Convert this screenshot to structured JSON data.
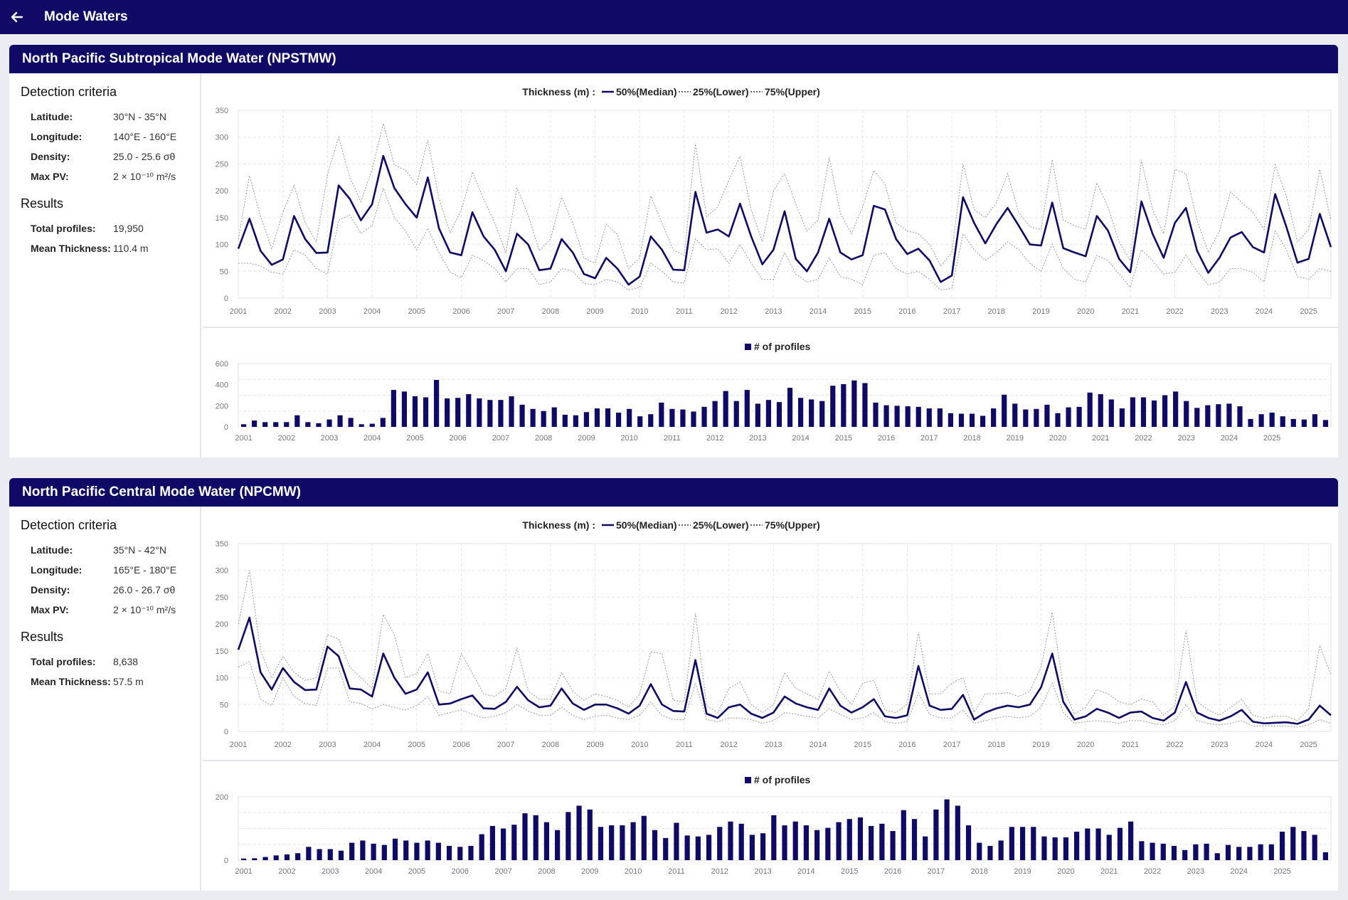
{
  "app": {
    "title": "Mode Waters"
  },
  "legend": {
    "thickness": "Thickness (m) :",
    "median": "50%(Median)",
    "lower": "25%(Lower)",
    "upper": "75%(Upper)",
    "profiles": "# of profiles"
  },
  "colors": {
    "navy": "#0f0a66",
    "grey": "#9a9a9a"
  },
  "years": [
    "2001",
    "2002",
    "2003",
    "2004",
    "2005",
    "2006",
    "2007",
    "2008",
    "2009",
    "2010",
    "2011",
    "2012",
    "2013",
    "2014",
    "2015",
    "2016",
    "2017",
    "2018",
    "2019",
    "2020",
    "2021",
    "2022",
    "2023",
    "2024",
    "2025"
  ],
  "panels": [
    {
      "title": "North Pacific Subtropical Mode Water (NPSTMW)",
      "criteria_heading": "Detection criteria",
      "criteria": [
        {
          "label": "Latitude:",
          "value": "30°N - 35°N"
        },
        {
          "label": "Longitude:",
          "value": "140°E - 160°E"
        },
        {
          "label": "Density:",
          "value": "25.0 - 25.6 σθ"
        },
        {
          "label": "Max PV:",
          "value": "2 × 10⁻¹⁰ m²/s"
        }
      ],
      "results_heading": "Results",
      "results": [
        {
          "label": "Total profiles:",
          "value": "19,950"
        },
        {
          "label": "Mean Thickness:",
          "value": "110.4 m"
        }
      ],
      "chart_data": {
        "thickness": {
          "type": "line",
          "xlabel": "",
          "ylabel": "",
          "x_start": 2001.0,
          "x_step": 0.25,
          "ylim": [
            0,
            350
          ],
          "yticks": [
            0,
            50,
            100,
            150,
            200,
            250,
            300,
            350
          ],
          "series": [
            {
              "name": "50%(Median)",
              "values": [
                92,
                148,
                88,
                62,
                72,
                153,
                110,
                84,
                85,
                210,
                185,
                145,
                175,
                265,
                205,
                175,
                150,
                225,
                130,
                85,
                80,
                160,
                115,
                90,
                50,
                120,
                100,
                52,
                55,
                110,
                85,
                45,
                37,
                75,
                55,
                25,
                40,
                115,
                90,
                53,
                52,
                198,
                122,
                128,
                115,
                176,
                115,
                63,
                90,
                162,
                73,
                50,
                85,
                148,
                85,
                72,
                80,
                172,
                165,
                110,
                82,
                92,
                70,
                30,
                42,
                188,
                140,
                102,
                138,
                168,
                135,
                100,
                98,
                178,
                93,
                85,
                78,
                153,
                126,
                73,
                48,
                180,
                120,
                75,
                140,
                168,
                88,
                47,
                75,
                113,
                123,
                95,
                85,
                194,
                133,
                66,
                73,
                157,
                95
              ]
            },
            {
              "name": "25%(Lower)",
              "values": [
                65,
                65,
                60,
                48,
                45,
                90,
                80,
                55,
                45,
                145,
                155,
                120,
                135,
                205,
                150,
                125,
                90,
                130,
                85,
                48,
                38,
                80,
                70,
                55,
                30,
                55,
                55,
                25,
                30,
                55,
                50,
                27,
                25,
                35,
                30,
                15,
                20,
                65,
                50,
                30,
                28,
                110,
                90,
                92,
                65,
                100,
                65,
                35,
                35,
                85,
                45,
                30,
                35,
                75,
                40,
                35,
                25,
                80,
                85,
                55,
                45,
                50,
                35,
                15,
                18,
                120,
                90,
                70,
                85,
                105,
                90,
                65,
                50,
                100,
                55,
                35,
                30,
                80,
                70,
                45,
                20,
                90,
                70,
                45,
                48,
                80,
                50,
                25,
                30,
                55,
                55,
                48,
                30,
                125,
                90,
                40,
                35,
                55,
                50
              ]
            },
            {
              "name": "75%(Upper)",
              "values": [
                110,
                228,
                152,
                92,
                160,
                210,
                140,
                105,
                230,
                300,
                225,
                180,
                240,
                325,
                248,
                238,
                212,
                295,
                185,
                122,
                165,
                235,
                185,
                140,
                85,
                205,
                155,
                88,
                110,
                188,
                140,
                75,
                65,
                138,
                118,
                55,
                75,
                190,
                140,
                90,
                80,
                287,
                152,
                170,
                220,
                264,
                165,
                105,
                200,
                232,
                175,
                125,
                145,
                262,
                158,
                120,
                170,
                238,
                212,
                140,
                125,
                120,
                100,
                60,
                85,
                250,
                165,
                150,
                178,
                232,
                160,
                133,
                128,
                258,
                145,
                135,
                128,
                215,
                170,
                105,
                70,
                258,
                165,
                120,
                240,
                232,
                145,
                85,
                125,
                198,
                178,
                160,
                128,
                248,
                190,
                105,
                128,
                240,
                145
              ]
            }
          ]
        },
        "profiles": {
          "type": "bar",
          "ylim": [
            0,
            600
          ],
          "yticks": [
            0,
            200,
            400,
            600
          ],
          "values": [
            25,
            60,
            45,
            45,
            45,
            110,
            45,
            35,
            70,
            110,
            85,
            25,
            30,
            85,
            350,
            335,
            290,
            280,
            445,
            270,
            275,
            310,
            270,
            255,
            255,
            290,
            210,
            170,
            150,
            185,
            115,
            110,
            140,
            175,
            175,
            135,
            170,
            100,
            120,
            230,
            170,
            165,
            145,
            190,
            245,
            340,
            245,
            350,
            220,
            255,
            235,
            370,
            275,
            260,
            245,
            390,
            405,
            440,
            415,
            230,
            205,
            200,
            195,
            190,
            175,
            175,
            130,
            125,
            125,
            105,
            175,
            305,
            220,
            165,
            170,
            210,
            130,
            185,
            190,
            325,
            310,
            260,
            175,
            280,
            280,
            250,
            300,
            335,
            245,
            180,
            205,
            215,
            220,
            195,
            75,
            120,
            135,
            100,
            75,
            70,
            120,
            65
          ]
        }
      }
    },
    {
      "title": "North Pacific Central Mode Water (NPCMW)",
      "criteria_heading": "Detection criteria",
      "criteria": [
        {
          "label": "Latitude:",
          "value": "35°N - 42°N"
        },
        {
          "label": "Longitude:",
          "value": "165°E - 180°E"
        },
        {
          "label": "Density:",
          "value": "26.0 - 26.7 σθ"
        },
        {
          "label": "Max PV:",
          "value": "2 × 10⁻¹⁰ m²/s"
        }
      ],
      "results_heading": "Results",
      "results": [
        {
          "label": "Total profiles:",
          "value": "8,638"
        },
        {
          "label": "Mean Thickness:",
          "value": "57.5 m"
        }
      ],
      "chart_data": {
        "thickness": {
          "type": "line",
          "xlabel": "",
          "ylabel": "",
          "x_start": 2001.0,
          "x_step": 0.25,
          "ylim": [
            0,
            350
          ],
          "yticks": [
            0,
            50,
            100,
            150,
            200,
            250,
            300,
            350
          ],
          "series": [
            {
              "name": "50%(Median)",
              "values": [
                152,
                212,
                110,
                78,
                118,
                92,
                77,
                78,
                158,
                140,
                80,
                78,
                65,
                145,
                100,
                70,
                78,
                110,
                50,
                52,
                60,
                67,
                43,
                42,
                55,
                83,
                58,
                45,
                48,
                80,
                52,
                40,
                50,
                50,
                43,
                33,
                48,
                88,
                50,
                38,
                37,
                133,
                33,
                25,
                45,
                50,
                33,
                25,
                35,
                65,
                52,
                45,
                40,
                80,
                48,
                35,
                45,
                60,
                28,
                25,
                30,
                122,
                48,
                40,
                42,
                68,
                22,
                35,
                43,
                48,
                45,
                50,
                82,
                145,
                55,
                22,
                28,
                42,
                35,
                25,
                35,
                37,
                25,
                20,
                35,
                92,
                35,
                25,
                20,
                28,
                40,
                18,
                15,
                16,
                17,
                14,
                22,
                48,
                30
              ]
            },
            {
              "name": "25%(Lower)",
              "values": [
                120,
                130,
                60,
                48,
                100,
                65,
                52,
                48,
                118,
                118,
                55,
                52,
                42,
                50,
                45,
                40,
                48,
                65,
                30,
                35,
                40,
                32,
                25,
                28,
                35,
                50,
                38,
                30,
                30,
                45,
                30,
                22,
                28,
                30,
                25,
                22,
                30,
                55,
                30,
                22,
                22,
                90,
                22,
                18,
                25,
                25,
                22,
                15,
                20,
                35,
                32,
                28,
                25,
                42,
                32,
                22,
                25,
                35,
                18,
                15,
                18,
                72,
                32,
                25,
                25,
                40,
                15,
                20,
                25,
                28,
                25,
                28,
                45,
                90,
                35,
                15,
                18,
                20,
                18,
                15,
                20,
                20,
                15,
                12,
                20,
                50,
                20,
                15,
                12,
                15,
                20,
                10,
                10,
                10,
                10,
                8,
                12,
                22,
                15
              ]
            },
            {
              "name": "75%(Upper)",
              "values": [
                200,
                300,
                150,
                100,
                140,
                110,
                95,
                100,
                180,
                172,
                120,
                100,
                80,
                218,
                180,
                100,
                108,
                145,
                75,
                70,
                145,
                108,
                70,
                65,
                80,
                155,
                75,
                60,
                60,
                110,
                75,
                58,
                70,
                65,
                58,
                45,
                70,
                148,
                145,
                58,
                55,
                220,
                48,
                35,
                80,
                92,
                50,
                35,
                50,
                110,
                80,
                70,
                60,
                112,
                75,
                50,
                90,
                95,
                40,
                35,
                50,
                185,
                70,
                70,
                90,
                100,
                35,
                70,
                70,
                72,
                65,
                75,
                120,
                222,
                80,
                32,
                45,
                78,
                70,
                55,
                50,
                60,
                55,
                30,
                48,
                188,
                55,
                40,
                30,
                45,
                60,
                30,
                25,
                28,
                28,
                20,
                42,
                160,
                105
              ]
            }
          ]
        },
        "profiles": {
          "type": "bar",
          "ylim": [
            0,
            200
          ],
          "yticks": [
            0,
            200
          ],
          "values": [
            5,
            6,
            10,
            15,
            18,
            22,
            42,
            35,
            35,
            30,
            55,
            62,
            52,
            48,
            68,
            62,
            55,
            62,
            55,
            45,
            42,
            45,
            82,
            108,
            100,
            112,
            148,
            142,
            120,
            95,
            152,
            172,
            160,
            105,
            110,
            110,
            120,
            140,
            95,
            70,
            118,
            78,
            75,
            80,
            105,
            122,
            115,
            80,
            85,
            142,
            110,
            122,
            110,
            95,
            102,
            120,
            130,
            135,
            108,
            115,
            92,
            158,
            130,
            75,
            160,
            192,
            172,
            110,
            55,
            45,
            62,
            105,
            105,
            105,
            75,
            72,
            72,
            90,
            100,
            100,
            80,
            102,
            122,
            60,
            55,
            52,
            45,
            32,
            50,
            52,
            22,
            48,
            42,
            42,
            50,
            50,
            90,
            105,
            92,
            80,
            25
          ]
        }
      }
    }
  ]
}
